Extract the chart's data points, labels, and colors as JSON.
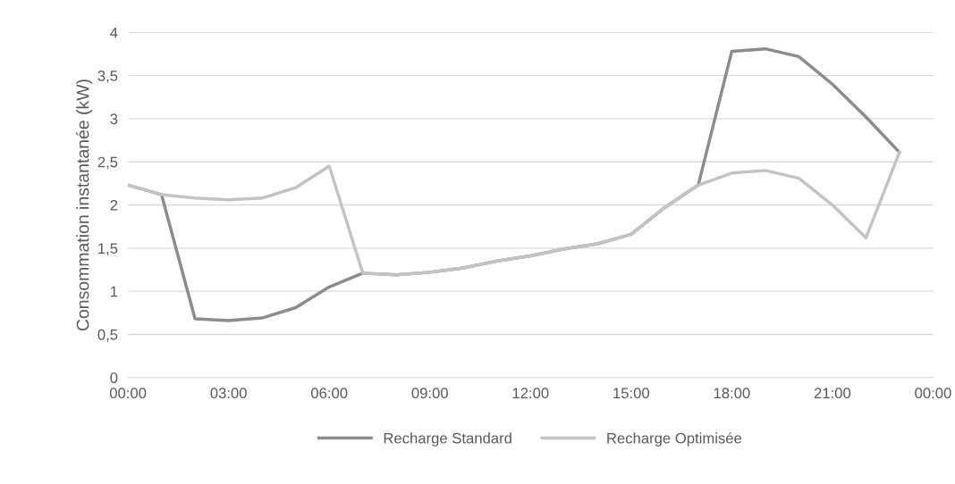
{
  "chart_data": {
    "type": "line",
    "ylabel": "Consommation instantanée (kW)",
    "x": [
      0,
      1,
      2,
      3,
      4,
      5,
      6,
      7,
      8,
      9,
      10,
      11,
      12,
      13,
      14,
      15,
      16,
      17,
      18,
      19,
      20,
      21,
      22,
      23
    ],
    "series": [
      {
        "name": "Recharge Standard",
        "color": "#8c8c8c",
        "values": [
          2.23,
          2.12,
          0.68,
          0.66,
          0.69,
          0.81,
          1.05,
          1.21,
          1.19,
          1.22,
          1.27,
          1.35,
          1.41,
          1.49,
          1.55,
          1.66,
          1.97,
          2.23,
          3.78,
          3.81,
          3.72,
          3.4,
          3.02,
          2.61
        ]
      },
      {
        "name": "Recharge Optimisée",
        "color": "#c3c3c3",
        "values": [
          2.23,
          2.12,
          2.08,
          2.06,
          2.08,
          2.2,
          2.45,
          1.21,
          1.19,
          1.22,
          1.27,
          1.35,
          1.41,
          1.49,
          1.55,
          1.66,
          1.97,
          2.23,
          2.37,
          2.4,
          2.31,
          2.0,
          1.62,
          2.61
        ]
      }
    ],
    "xlim": [
      0,
      24
    ],
    "xticks": [
      {
        "value": 0,
        "label": "00:00"
      },
      {
        "value": 3,
        "label": "03:00"
      },
      {
        "value": 6,
        "label": "06:00"
      },
      {
        "value": 9,
        "label": "09:00"
      },
      {
        "value": 12,
        "label": "12:00"
      },
      {
        "value": 15,
        "label": "15:00"
      },
      {
        "value": 18,
        "label": "18:00"
      },
      {
        "value": 21,
        "label": "21:00"
      },
      {
        "value": 24,
        "label": "00:00"
      }
    ],
    "ylim": [
      0,
      4
    ],
    "yticks": [
      0,
      {
        "value": 0.5,
        "label": "0,5"
      },
      1,
      {
        "value": 1.5,
        "label": "1,5"
      },
      2,
      {
        "value": 2.5,
        "label": "2,5"
      },
      3,
      {
        "value": 3.5,
        "label": "3,5"
      },
      4
    ],
    "grid": "y",
    "legend": "bottom",
    "marker": "none",
    "line_style": "solid"
  }
}
